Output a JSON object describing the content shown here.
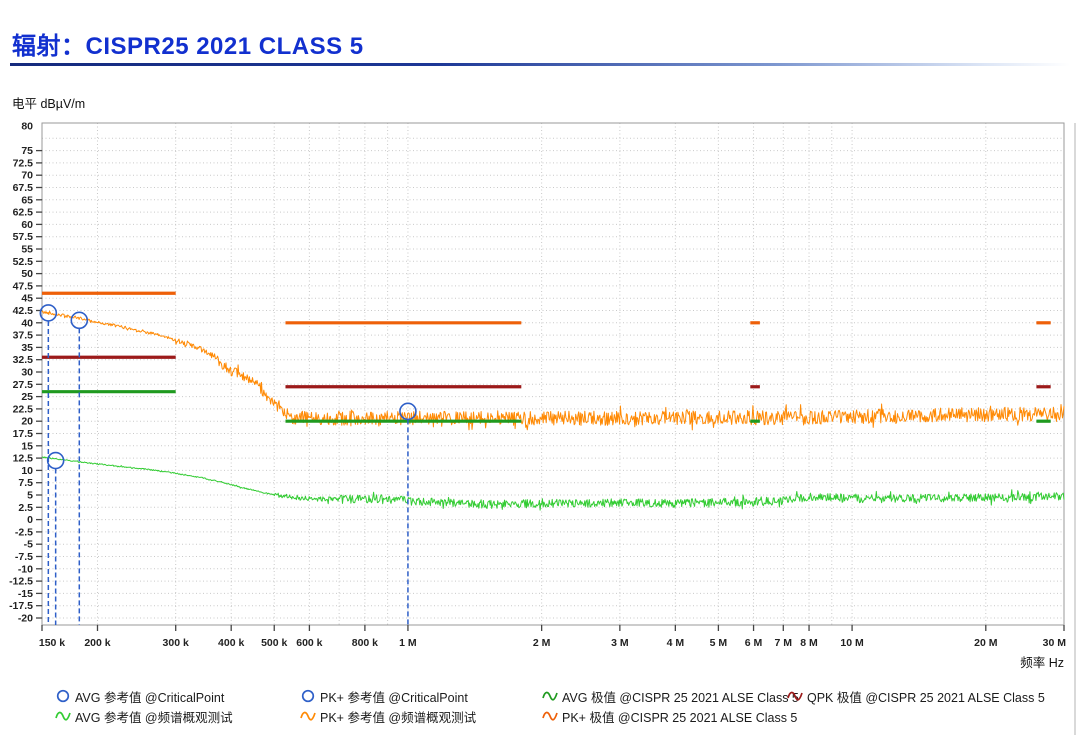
{
  "header": {
    "title": "辐射：CISPR25 2021 CLASS 5",
    "title_color": "#1230CF"
  },
  "axes": {
    "y_unit": "电平 dBµV/m",
    "x_unit": "频率 Hz"
  },
  "chart_data": {
    "type": "line",
    "title": "辐射：CISPR25 2021 CLASS 5",
    "ylabel": "电平 dBµV/m",
    "xlabel": "频率 Hz",
    "x_scale": "log",
    "x_range_mhz": [
      0.15,
      30
    ],
    "ylim": [
      -20,
      80
    ],
    "grid": true,
    "legend_position": "bottom",
    "y_tick_labels": [
      "80",
      "75",
      "72.5",
      "70",
      "67.5",
      "65",
      "62.5",
      "60",
      "57.5",
      "55",
      "52.5",
      "50",
      "47.5",
      "45",
      "42.5",
      "40",
      "37.5",
      "35",
      "32.5",
      "30",
      "27.5",
      "25",
      "22.5",
      "20",
      "17.5",
      "15",
      "12.5",
      "10",
      "7.5",
      "5",
      "2.5",
      "0",
      "-2.5",
      "-5",
      "-7.5",
      "-10",
      "-12.5",
      "-15",
      "-17.5",
      "-20"
    ],
    "x_ticks": [
      {
        "mhz": 0.15,
        "label": "150 k"
      },
      {
        "mhz": 0.2,
        "label": "200 k"
      },
      {
        "mhz": 0.3,
        "label": "300 k"
      },
      {
        "mhz": 0.4,
        "label": "400 k"
      },
      {
        "mhz": 0.5,
        "label": "500 k"
      },
      {
        "mhz": 0.6,
        "label": "600 k"
      },
      {
        "mhz": 0.8,
        "label": "800 k"
      },
      {
        "mhz": 1,
        "label": "1 M"
      },
      {
        "mhz": 2,
        "label": "2 M"
      },
      {
        "mhz": 3,
        "label": "3 M"
      },
      {
        "mhz": 4,
        "label": "4 M"
      },
      {
        "mhz": 5,
        "label": "5 M"
      },
      {
        "mhz": 6,
        "label": "6 M"
      },
      {
        "mhz": 7,
        "label": "7 M"
      },
      {
        "mhz": 8,
        "label": "8 M"
      },
      {
        "mhz": 10,
        "label": "10 M"
      },
      {
        "mhz": 20,
        "label": "20 M"
      },
      {
        "mhz": 30,
        "label": "30 M"
      }
    ],
    "x_grid_mhz": [
      0.2,
      0.3,
      0.4,
      0.5,
      0.6,
      0.7,
      0.8,
      0.9,
      1,
      2,
      3,
      4,
      5,
      6,
      7,
      8,
      9,
      10,
      20,
      30
    ],
    "limit_bands_mhz": [
      [
        0.15,
        0.3
      ],
      [
        0.53,
        1.8
      ],
      [
        5.9,
        6.2
      ],
      [
        26,
        28
      ]
    ],
    "limits": [
      {
        "name": "PK+ 极值 @CISPR 25 2021 ALSE Class 5",
        "color": "#EE6009",
        "levels": [
          46,
          40,
          40,
          40
        ]
      },
      {
        "name": "QPK 极值 @CISPR 25 2021 ALSE Class 5",
        "color": "#9C1A1A",
        "levels": [
          33,
          27,
          27,
          27
        ]
      },
      {
        "name": "AVG 极值 @CISPR 25 2021 ALSE Class 5",
        "color": "#1F9A1F",
        "levels": [
          26,
          20,
          20,
          20
        ]
      }
    ],
    "series": [
      {
        "name": "AVG 参考值 @频谱概观测试",
        "color": "#33CC33",
        "seed": 77,
        "anchors": [
          [
            0.15,
            12.7
          ],
          [
            0.17,
            12.1
          ],
          [
            0.2,
            11.3
          ],
          [
            0.23,
            10.7
          ],
          [
            0.26,
            10.2
          ],
          [
            0.3,
            9.4
          ],
          [
            0.34,
            8.6
          ],
          [
            0.38,
            7.6
          ],
          [
            0.42,
            6.6
          ],
          [
            0.46,
            5.7
          ],
          [
            0.5,
            5.0
          ],
          [
            0.55,
            4.5
          ],
          [
            0.62,
            4.2
          ],
          [
            0.7,
            4.1
          ],
          [
            0.85,
            4.3
          ],
          [
            1,
            3.8
          ],
          [
            1.2,
            3.4
          ],
          [
            1.5,
            3.1
          ],
          [
            2,
            3.3
          ],
          [
            3,
            3.4
          ],
          [
            4,
            3.3
          ],
          [
            5,
            3.5
          ],
          [
            6,
            3.6
          ],
          [
            7,
            3.9
          ],
          [
            8,
            4.6
          ],
          [
            9,
            4.5
          ],
          [
            10,
            4.2
          ],
          [
            13,
            4.3
          ],
          [
            16,
            4.4
          ],
          [
            20,
            4.5
          ],
          [
            25,
            4.6
          ],
          [
            30,
            4.8
          ]
        ],
        "noise": [
          [
            0.5,
            0.12
          ],
          [
            0.7,
            0.5
          ],
          [
            30,
            0.85
          ]
        ]
      },
      {
        "name": "PK+ 参考值 @频谱概观测试",
        "color": "#FF8A05",
        "seed": 42,
        "anchors": [
          [
            0.15,
            42.2
          ],
          [
            0.165,
            41.6
          ],
          [
            0.185,
            40.8
          ],
          [
            0.2,
            40.1
          ],
          [
            0.22,
            39.4
          ],
          [
            0.25,
            38.4
          ],
          [
            0.28,
            37.3
          ],
          [
            0.3,
            36.5
          ],
          [
            0.32,
            35.7
          ],
          [
            0.34,
            34.7
          ],
          [
            0.36,
            33.6
          ],
          [
            0.38,
            31.8
          ],
          [
            0.4,
            30.2
          ],
          [
            0.42,
            29.4
          ],
          [
            0.44,
            28.2
          ],
          [
            0.46,
            27.2
          ],
          [
            0.48,
            25.2
          ],
          [
            0.5,
            23.4
          ],
          [
            0.52,
            21.8
          ],
          [
            0.56,
            20.7
          ],
          [
            0.8,
            20.6
          ],
          [
            1.5,
            20.6
          ],
          [
            3,
            20.6
          ],
          [
            6,
            20.7
          ],
          [
            10,
            20.9
          ],
          [
            15,
            21.2
          ],
          [
            22,
            21.4
          ],
          [
            30,
            21.4
          ]
        ],
        "noise": [
          [
            0.3,
            0.3
          ],
          [
            0.36,
            0.55
          ],
          [
            0.53,
            1.0
          ],
          [
            30,
            1.45
          ]
        ]
      }
    ],
    "markers": [
      {
        "mhz": 0.155,
        "db": 42,
        "label": "PK+ 参考值 @CriticalPoint"
      },
      {
        "mhz": 0.161,
        "db": 12,
        "label": "AVG 参考值 @CriticalPoint"
      },
      {
        "mhz": 0.182,
        "db": 40.5,
        "label": "PK+ 参考值 @CriticalPoint"
      },
      {
        "mhz": 1.0,
        "db": 22,
        "label": "PK+ 参考值 @CriticalPoint"
      }
    ],
    "marker_color": "#2E5FC8"
  },
  "legend": {
    "items": [
      {
        "glyph": "circle",
        "color": "#2E5FC8",
        "label": "AVG 参考值 @CriticalPoint",
        "col": 1,
        "row": 1
      },
      {
        "glyph": "wave",
        "color": "#33CC33",
        "label": "AVG 参考值 @频谱概观测试",
        "col": 1,
        "row": 2
      },
      {
        "glyph": "circle",
        "color": "#2E5FC8",
        "label": "PK+ 参考值 @CriticalPoint",
        "col": 2,
        "row": 1
      },
      {
        "glyph": "wave",
        "color": "#FF8A05",
        "label": "PK+ 参考值 @频谱概观测试",
        "col": 2,
        "row": 2
      },
      {
        "glyph": "wave",
        "color": "#1F9A1F",
        "label": "AVG 极值 @CISPR 25 2021 ALSE Class 5",
        "col": 3,
        "row": 1
      },
      {
        "glyph": "wave",
        "color": "#EE6009",
        "label": "PK+ 极值 @CISPR 25 2021 ALSE Class 5",
        "col": 3,
        "row": 2
      },
      {
        "glyph": "wave",
        "color": "#9C1A1A",
        "label": "QPK 极值 @CISPR 25 2021 ALSE Class 5",
        "col": 4,
        "row": 1
      }
    ]
  }
}
